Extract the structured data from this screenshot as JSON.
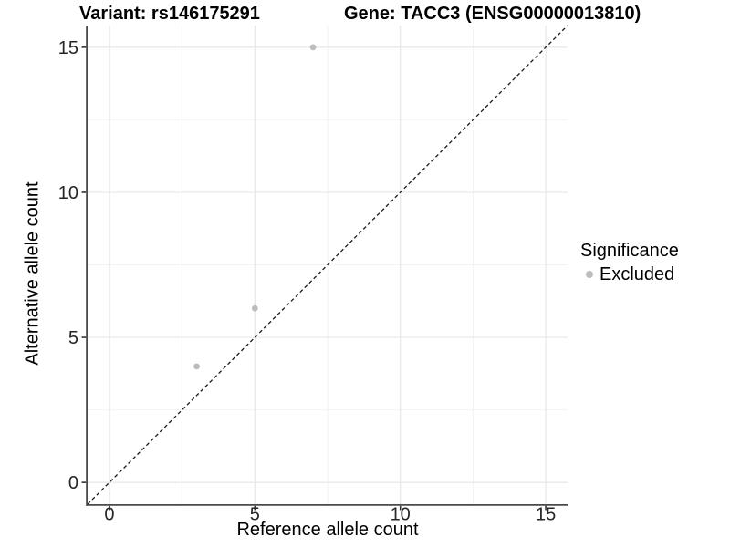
{
  "chart_data": {
    "type": "scatter",
    "titles": {
      "left": "Variant: rs146175291",
      "right": "Gene: TACC3 (ENSG00000013810)"
    },
    "xlabel": "Reference allele count",
    "ylabel": "Alternative allele count",
    "xlim": [
      -0.75,
      15.75
    ],
    "ylim": [
      -0.75,
      15.75
    ],
    "xticks": [
      0,
      5,
      10,
      15
    ],
    "yticks": [
      0,
      5,
      10,
      15
    ],
    "xticks_minor": [
      2.5,
      7.5,
      12.5
    ],
    "yticks_minor": [
      2.5,
      7.5,
      12.5
    ],
    "grid": true,
    "points": [
      {
        "x": 3,
        "y": 4,
        "series": "Excluded"
      },
      {
        "x": 5,
        "y": 6,
        "series": "Excluded"
      },
      {
        "x": 7,
        "y": 15,
        "series": "Excluded"
      }
    ],
    "reference_line": {
      "type": "identity",
      "slope": 1,
      "intercept": 0,
      "style": "dashed"
    },
    "legend": {
      "position": "right",
      "title": "Significance",
      "items": [
        {
          "label": "Excluded",
          "color": "#bdbdbd"
        }
      ]
    },
    "colors": {
      "point": "#bdbdbd",
      "axis_line": "#4a4a4a",
      "tick_mark": "#333333",
      "grid_major": "#e7e7e7",
      "grid_minor": "#f2f2f2",
      "dashed_line": "#1a1a1a",
      "title_text": "#000000",
      "tick_text": "#262626"
    }
  }
}
